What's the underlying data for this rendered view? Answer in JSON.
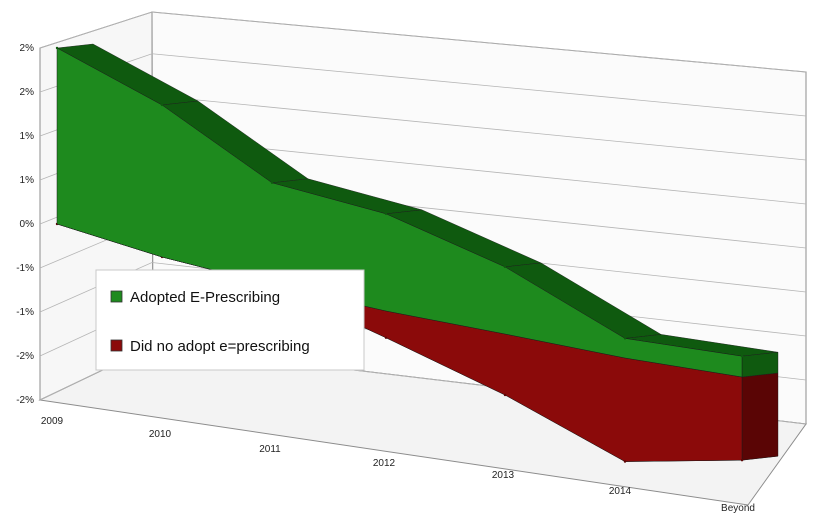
{
  "chart_data": {
    "type": "area",
    "view": "3d-perspective",
    "title": "",
    "xlabel": "",
    "ylabel": "",
    "categories": [
      "2009",
      "2010",
      "2011",
      "2012",
      "2013",
      "2014",
      "Beyond"
    ],
    "y_ticks": [
      "2%",
      "2%",
      "1%",
      "1%",
      "0%",
      "-1%",
      "-1%",
      "-2%",
      "-2%"
    ],
    "ylim": [
      -2.0,
      2.0
    ],
    "grid": true,
    "legend_position": "left-middle",
    "series": [
      {
        "name": "Adopted E-Prescribing",
        "color": "#1e8a1e",
        "top_color": "#0f5a0f",
        "values": [
          2.0,
          1.9,
          1.4,
          1.45,
          1.1,
          0.35,
          0.4
        ]
      },
      {
        "name": "Did no adopt e=prescribing",
        "color": "#8b0a0a",
        "top_color": "#5a0505",
        "values": [
          0.0,
          0.0,
          0.0,
          -0.4,
          -1.0,
          -1.85,
          -1.6
        ]
      }
    ]
  }
}
